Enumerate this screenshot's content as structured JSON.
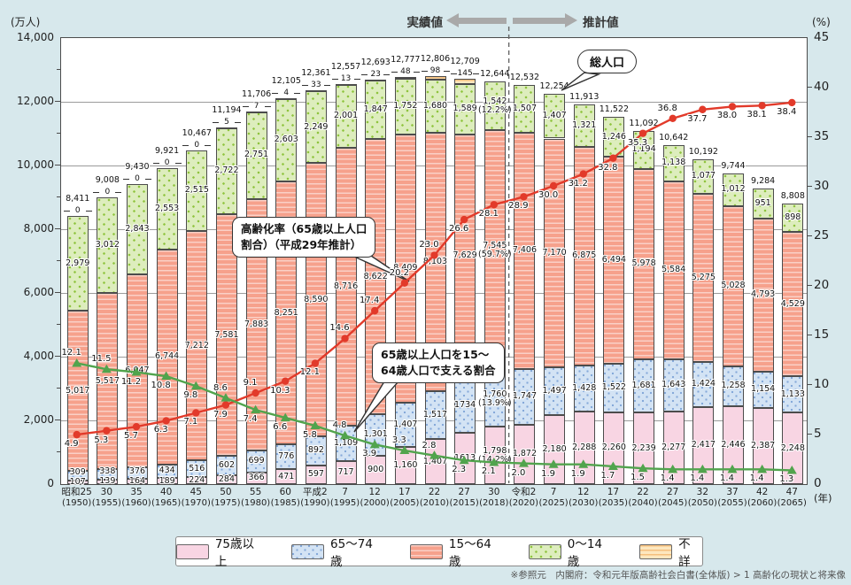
{
  "page": {
    "unit_left": "(万人)",
    "unit_right": "(%)",
    "unit_year": "(年)",
    "actual_label": "実績値",
    "projection_label": "推計値",
    "total_pop_label": "総人口",
    "annotation_aging_line1": "高齢化率（65歳以上人口",
    "annotation_aging_line2": "割合）（平成29年推計）",
    "annotation_support_line1": "65歳以上人口を15～",
    "annotation_support_line2": "64歳人口で支える割合",
    "footer": "※参照元　内閣府：令和元年版高齢社会白書(全体版) > 1 高齢化の現状と将来像"
  },
  "legend": {
    "items": [
      {
        "key": "p75",
        "label": "75歳以上"
      },
      {
        "key": "a6574",
        "label": "65～74歳"
      },
      {
        "key": "a1564",
        "label": "15～64歳"
      },
      {
        "key": "a014",
        "label": "0～14歳"
      },
      {
        "key": "unknown",
        "label": "不詳"
      }
    ]
  },
  "colors": {
    "p75": "#f8d5e3",
    "a6574": "#d3e3f4",
    "a1564": "#f6a18c",
    "a014": "#ddedbd",
    "unknown": "#fde7bf",
    "aging_line": "#e23a2a",
    "support_line": "#51a44d",
    "page_bg": "#d7e8ec",
    "grid": "#9b9b9b"
  },
  "chart_data": {
    "type": "bar",
    "stacked": true,
    "secondary_lines": true,
    "ylim_left": [
      0,
      14000
    ],
    "ylim_right": [
      0,
      45
    ],
    "grid": true,
    "x_era": [
      "昭和25",
      "30",
      "35",
      "40",
      "45",
      "50",
      "55",
      "60",
      "平成2",
      "7",
      "12",
      "17",
      "22",
      "27",
      "30",
      "令和2",
      "7",
      "12",
      "17",
      "22",
      "27",
      "32",
      "37",
      "42",
      "47"
    ],
    "x_year": [
      "(1950)",
      "(1955)",
      "(1960)",
      "(1965)",
      "(1970)",
      "(1975)",
      "(1980)",
      "(1985)",
      "(1990)",
      "(1995)",
      "(2000)",
      "(2005)",
      "(2010)",
      "(2015)",
      "(2018)",
      "(2020)",
      "(2025)",
      "(2030)",
      "(2035)",
      "(2040)",
      "(2045)",
      "(2050)",
      "(2055)",
      "(2060)",
      "(2065)"
    ],
    "divider_after_index": 14,
    "left_ticks": [
      {
        "v": 14000,
        "label": "14,000"
      },
      {
        "v": 12000,
        "label": "12,000"
      },
      {
        "v": 10000,
        "label": "10,000"
      },
      {
        "v": 8000,
        "label": "8,000"
      },
      {
        "v": 6000,
        "label": "6,000"
      },
      {
        "v": 4000,
        "label": "4,000"
      },
      {
        "v": 2000,
        "label": "2,000"
      },
      {
        "v": 0,
        "label": "0"
      }
    ],
    "minor_ticks_left": [
      1000,
      3000,
      5000,
      7000,
      9000,
      11000,
      13000
    ],
    "right_ticks": [
      {
        "v": 45,
        "label": "45"
      },
      {
        "v": 40,
        "label": "40"
      },
      {
        "v": 35,
        "label": "35"
      },
      {
        "v": 30,
        "label": "30"
      },
      {
        "v": 25,
        "label": "25"
      },
      {
        "v": 20,
        "label": "20"
      },
      {
        "v": 15,
        "label": "15"
      },
      {
        "v": 10,
        "label": "10"
      },
      {
        "v": 5,
        "label": "5"
      },
      {
        "v": 0,
        "label": "0"
      }
    ],
    "totals": [
      "8,411",
      "9,008",
      "9,430",
      "9,921",
      "10,467",
      "11,194",
      "11,706",
      "12,105",
      "12,361",
      "12,557",
      "12,693",
      "12,777",
      "12,806",
      "12,709",
      "12,644",
      "12,532",
      "12,254",
      "11,913",
      "11,522",
      "11,092",
      "10,642",
      "10,192",
      "9,744",
      "9,284",
      "8,808"
    ],
    "series": [
      {
        "key": "p75",
        "name": "75歳以上",
        "values": [
          107,
          139,
          164,
          189,
          224,
          284,
          366,
          471,
          597,
          717,
          900,
          1160,
          1407,
          1613,
          1798,
          1872,
          2180,
          2288,
          2260,
          2239,
          2277,
          2417,
          2446,
          2387,
          2248
        ],
        "labels": [
          "107",
          "139",
          "164",
          "189",
          "224",
          "284",
          "366",
          "471",
          "597",
          "717",
          "900",
          "1,160",
          "1,407",
          "1613",
          "1,798\n(14.2%)",
          "1,872",
          "2,180",
          "2,288",
          "2,260",
          "2,239",
          "2,277",
          "2,417",
          "2,446",
          "2,387",
          "2,248"
        ]
      },
      {
        "key": "a6574",
        "name": "65～74歳",
        "values": [
          309,
          338,
          376,
          434,
          516,
          602,
          699,
          776,
          892,
          1109,
          1301,
          1407,
          1517,
          1734,
          1760,
          1747,
          1497,
          1428,
          1522,
          1681,
          1643,
          1424,
          1258,
          1154,
          1133
        ],
        "labels": [
          "309",
          "338",
          "376",
          "434",
          "516",
          "602",
          "699",
          "776",
          "892",
          "1,109",
          "1,301",
          "1,407",
          "1,517",
          "1734",
          "1,760\n(13.9%)",
          "1,747",
          "1,497",
          "1,428",
          "1,522",
          "1,681",
          "1,643",
          "1,424",
          "1,258",
          "1,154",
          "1,133"
        ]
      },
      {
        "key": "a1564",
        "name": "15～64歳",
        "values": [
          5017,
          5517,
          6047,
          6744,
          7212,
          7581,
          7883,
          8251,
          8590,
          8716,
          8622,
          8409,
          8103,
          7629,
          7545,
          7406,
          7170,
          6875,
          6494,
          5978,
          5584,
          5275,
          5028,
          4793,
          4529
        ],
        "labels": [
          "5,017",
          "5,517",
          "6,047",
          "6,744",
          "7,212",
          "7,581",
          "7,883",
          "8,251",
          "8,590",
          "8,716",
          "8,622",
          "8,409",
          "8,103",
          "7,629",
          "7,545\n(59.7%)",
          "7,406",
          "7,170",
          "6,875",
          "6,494",
          "5,978",
          "5,584",
          "5,275",
          "5,028",
          "4,793",
          "4,529"
        ]
      },
      {
        "key": "a014",
        "name": "0～14歳",
        "values": [
          2979,
          3012,
          2843,
          2553,
          2515,
          2722,
          2751,
          2603,
          2249,
          2001,
          1847,
          1752,
          1680,
          1589,
          1542,
          1507,
          1407,
          1321,
          1246,
          1194,
          1138,
          1077,
          1012,
          951,
          898
        ],
        "labels": [
          "2,979",
          "3,012",
          "2,843",
          "2,553",
          "2,515",
          "2,722",
          "2,751",
          "2,603",
          "2,249",
          "2,001",
          "1,847",
          "1,752",
          "1,680",
          "1,589",
          "1,542\n(12.2%)",
          "1,507",
          "1,407",
          "1,321",
          "1,246",
          "1,194",
          "1,138",
          "1,077",
          "1,012",
          "951",
          "898"
        ]
      },
      {
        "key": "unknown",
        "name": "不詳",
        "values": [
          0,
          0,
          0,
          0,
          0,
          5,
          7,
          4,
          33,
          13,
          23,
          48,
          98,
          145,
          0,
          0,
          0,
          0,
          0,
          0,
          0,
          0,
          0,
          0,
          0
        ],
        "labels": [
          "0",
          "0",
          "0",
          "0",
          "0",
          "5",
          "7",
          "4",
          "33",
          "13",
          "23",
          "48",
          "98",
          "145",
          "",
          "",
          "",
          "",
          "",
          "",
          "",
          "",
          "",
          "",
          ""
        ]
      }
    ],
    "lines": [
      {
        "key": "aging",
        "name": "高齢化率（65歳以上人口割合）（平成29年推計）",
        "color": "#e23a2a",
        "marker": "circle",
        "values": [
          4.9,
          5.3,
          5.7,
          6.3,
          7.1,
          7.9,
          9.1,
          10.3,
          12.1,
          14.6,
          17.4,
          20.2,
          23.0,
          26.6,
          28.1,
          28.9,
          30.0,
          31.2,
          32.8,
          35.3,
          36.8,
          37.7,
          38.0,
          38.1,
          38.4
        ],
        "labels": [
          "4.9",
          "5.3",
          "5.7",
          "6.3",
          "7.1",
          "7.9",
          "9.1",
          "10.3",
          "12.1",
          "14.6",
          "17.4",
          "20.2",
          "23.0",
          "26.6",
          "28.1",
          "28.9",
          "30.0",
          "31.2",
          "32.8",
          "35.3",
          "36.8",
          "37.7",
          "38.0",
          "38.1",
          "38.4"
        ],
        "label_pos": [
          "b",
          "b",
          "b",
          "b",
          "b",
          "b",
          "a",
          "b",
          "b",
          "a",
          "a",
          "a",
          "a",
          "b",
          "b",
          "b",
          "b",
          "b",
          "b",
          "b",
          "a",
          "b",
          "b",
          "b",
          "b"
        ]
      },
      {
        "key": "support",
        "name": "65歳以上人口を15～64歳人口で支える割合",
        "color": "#51a44d",
        "marker": "triangle",
        "values": [
          12.1,
          11.5,
          11.2,
          10.8,
          9.8,
          8.6,
          7.4,
          6.6,
          5.8,
          4.8,
          3.9,
          3.3,
          2.8,
          2.3,
          2.1,
          2.0,
          1.9,
          1.9,
          1.7,
          1.5,
          1.4,
          1.4,
          1.4,
          1.4,
          1.3
        ],
        "labels": [
          "12.1",
          "11.5",
          "11.2",
          "10.8",
          "9.8",
          "8.6",
          "7.4",
          "6.6",
          "5.8",
          "4.8",
          "3.9",
          "3.3",
          "2.8",
          "2.3",
          "2.1",
          "2.0",
          "1.9",
          "1.9",
          "1.7",
          "1.5",
          "1.4",
          "1.4",
          "1.4",
          "1.4",
          "1.3"
        ],
        "label_pos": [
          "a",
          "a",
          "b",
          "b",
          "b",
          "a",
          "b",
          "b",
          "b",
          "a",
          "b",
          "a",
          "a",
          "b",
          "b",
          "b",
          "b",
          "b",
          "b",
          "b",
          "b",
          "b",
          "b",
          "b",
          "b"
        ]
      }
    ]
  }
}
